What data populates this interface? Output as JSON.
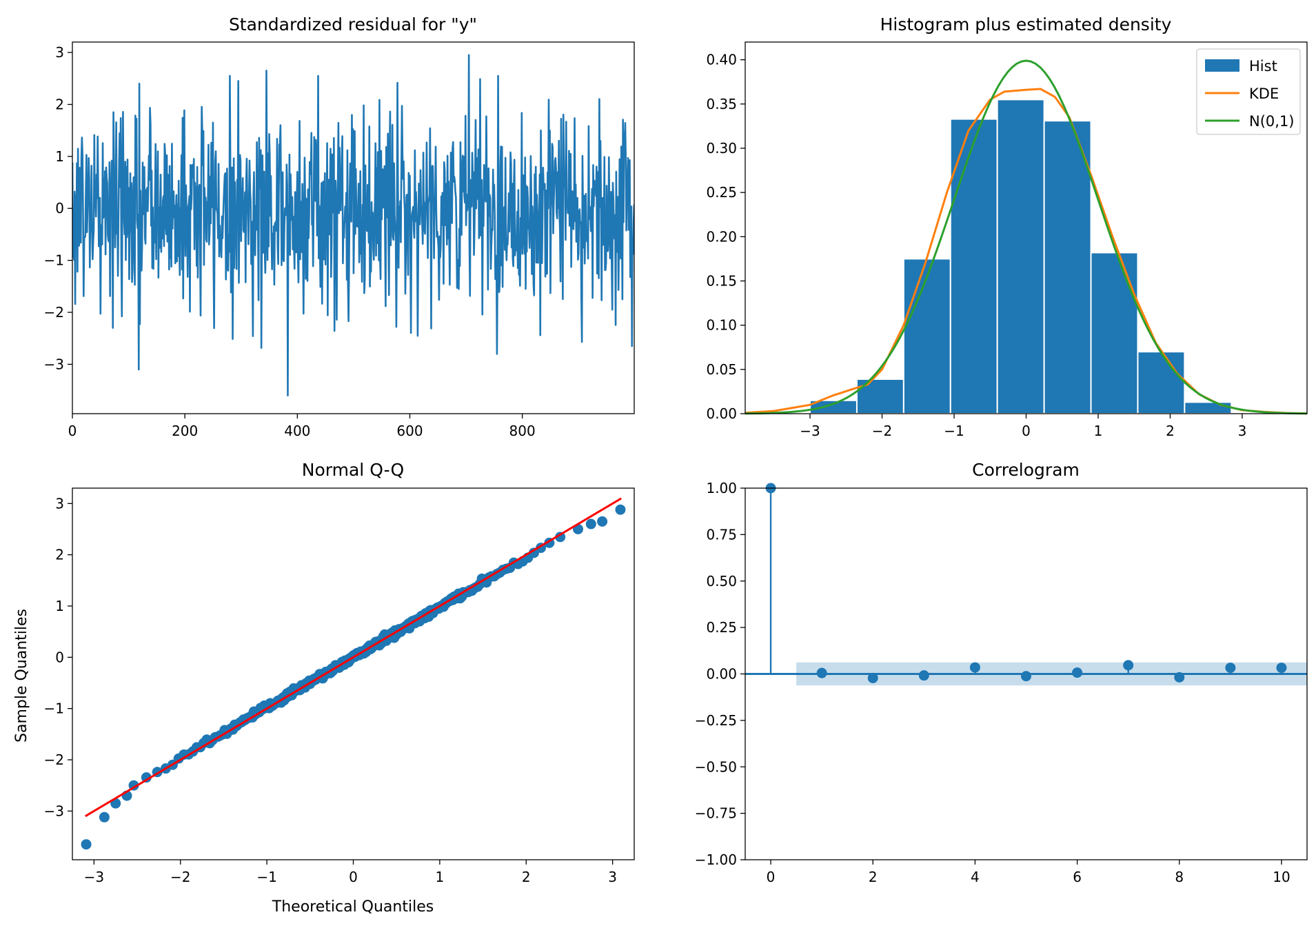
{
  "colors": {
    "blue": "#1f77b4",
    "orange": "#ff7f0e",
    "green": "#2ca02c",
    "red": "#ff0000",
    "band": "#1f77b4"
  },
  "chart_data": [
    {
      "id": "residual",
      "type": "line",
      "title": "Standardized residual for \"y\"",
      "xlabel": "",
      "ylabel": "",
      "xlim": [
        0,
        999
      ],
      "ylim": [
        -3.95,
        3.2
      ],
      "xticks": [
        0,
        200,
        400,
        600,
        800
      ],
      "yticks": [
        -3,
        -2,
        -1,
        0,
        1,
        2,
        3
      ],
      "n_points": 1000,
      "notable_points": [
        {
          "x": 118,
          "y": -3.1
        },
        {
          "x": 345,
          "y": 2.65
        },
        {
          "x": 383,
          "y": -3.6
        },
        {
          "x": 705,
          "y": 2.95
        },
        {
          "x": 755,
          "y": -2.8
        },
        {
          "x": 995,
          "y": -2.65
        }
      ],
      "series": [
        {
          "values_note": "",
          "values": []
        }
      ]
    },
    {
      "id": "histogram",
      "type": "bar",
      "title": "Histogram plus estimated density",
      "xlabel": "",
      "ylabel": "",
      "xlim": [
        -3.9,
        3.9
      ],
      "ylim": [
        0,
        0.42
      ],
      "xticks": [
        -3,
        -2,
        -1,
        0,
        1,
        2,
        3
      ],
      "yticks": [
        0.0,
        0.05,
        0.1,
        0.15,
        0.2,
        0.25,
        0.3,
        0.35,
        0.4
      ],
      "legend_position": "top-right",
      "bins": [
        {
          "x0": -3.0,
          "x1": -2.35,
          "value": 0.015
        },
        {
          "x0": -2.35,
          "x1": -1.7,
          "value": 0.039
        },
        {
          "x0": -1.7,
          "x1": -1.05,
          "value": 0.175
        },
        {
          "x0": -1.05,
          "x1": -0.4,
          "value": 0.333
        },
        {
          "x0": -0.4,
          "x1": 0.25,
          "value": 0.355
        },
        {
          "x0": 0.25,
          "x1": 0.9,
          "value": 0.331
        },
        {
          "x0": 0.9,
          "x1": 1.55,
          "value": 0.182
        },
        {
          "x0": 1.55,
          "x1": 2.2,
          "value": 0.07
        },
        {
          "x0": 2.2,
          "x1": 2.85,
          "value": 0.013
        }
      ],
      "series": [
        {
          "name": "Hist",
          "kind": "bar"
        },
        {
          "name": "KDE",
          "kind": "line",
          "x": [
            -3.9,
            -3.5,
            -3.0,
            -2.7,
            -2.4,
            -2.2,
            -2.0,
            -1.7,
            -1.4,
            -1.1,
            -0.8,
            -0.5,
            -0.3,
            0.0,
            0.2,
            0.4,
            0.6,
            0.9,
            1.2,
            1.5,
            1.8,
            2.1,
            2.4,
            2.7,
            3.0,
            3.3,
            3.6,
            3.9
          ],
          "y": [
            0.001,
            0.003,
            0.01,
            0.02,
            0.028,
            0.033,
            0.05,
            0.1,
            0.17,
            0.25,
            0.32,
            0.355,
            0.364,
            0.366,
            0.367,
            0.358,
            0.335,
            0.27,
            0.2,
            0.135,
            0.08,
            0.045,
            0.022,
            0.01,
            0.004,
            0.002,
            0.0008,
            0.0002
          ]
        },
        {
          "name": "N(0,1)",
          "kind": "line",
          "function": "normal_pdf"
        }
      ]
    },
    {
      "id": "qq",
      "type": "scatter",
      "title": "Normal Q-Q",
      "xlabel": "Theoretical Quantiles",
      "ylabel": "Sample Quantiles",
      "xlim": [
        -3.25,
        3.25
      ],
      "ylim": [
        -3.95,
        3.3
      ],
      "xticks": [
        -3,
        -2,
        -1,
        0,
        1,
        2,
        3
      ],
      "yticks": [
        -3,
        -2,
        -1,
        0,
        1,
        2,
        3
      ],
      "reference_line": {
        "x": [
          -3.1,
          3.1
        ],
        "y": [
          -3.1,
          3.1
        ]
      },
      "extreme_points": [
        {
          "x": -3.09,
          "y": -3.65
        },
        {
          "x": -2.88,
          "y": -3.12
        },
        {
          "x": -2.75,
          "y": -2.85
        },
        {
          "x": -2.62,
          "y": -2.7
        },
        {
          "x": -2.54,
          "y": -2.5
        },
        {
          "x": 2.6,
          "y": 2.5
        },
        {
          "x": 2.75,
          "y": 2.6
        },
        {
          "x": 2.88,
          "y": 2.65
        },
        {
          "x": 3.09,
          "y": 2.88
        }
      ]
    },
    {
      "id": "correlogram",
      "type": "scatter",
      "title": "Correlogram",
      "xlabel": "",
      "ylabel": "",
      "xlim": [
        -0.5,
        10.5
      ],
      "ylim": [
        -1.0,
        1.0
      ],
      "xticks": [
        0,
        2,
        4,
        6,
        8,
        10
      ],
      "yticks": [
        -1.0,
        -0.75,
        -0.5,
        -0.25,
        0.0,
        0.25,
        0.5,
        0.75,
        1.0
      ],
      "confidence_band": [
        -0.062,
        0.062
      ],
      "lags": [
        0,
        1,
        2,
        3,
        4,
        5,
        6,
        7,
        8,
        9,
        10
      ],
      "values": [
        1.0,
        0.005,
        -0.022,
        -0.008,
        0.035,
        -0.012,
        0.007,
        0.047,
        -0.018,
        0.033,
        0.033
      ]
    }
  ]
}
